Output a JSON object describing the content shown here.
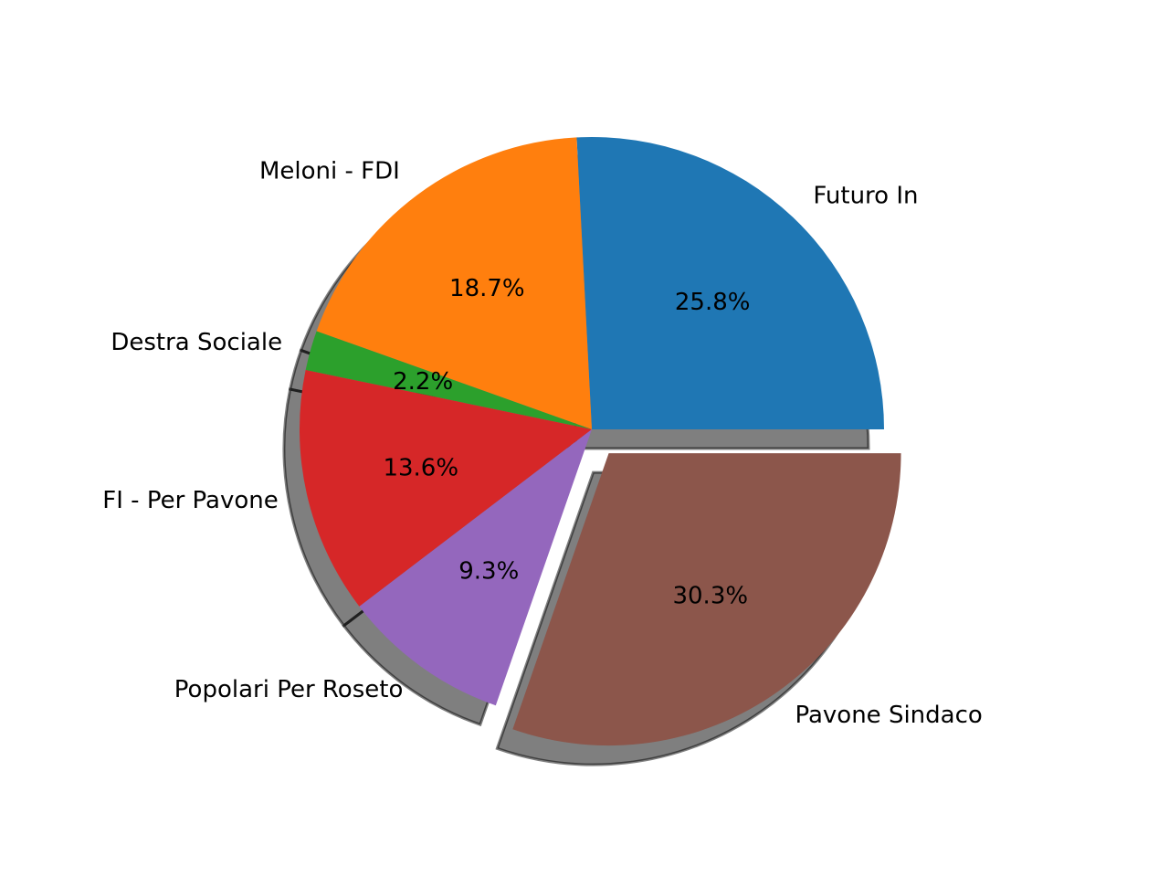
{
  "chart_data": {
    "type": "pie",
    "title": "",
    "start_angle_deg": 0,
    "direction": "counterclockwise",
    "shadow": true,
    "slices": [
      {
        "label": "Futuro In",
        "value": 25.8,
        "pct_label": "25.8%",
        "color": "#1f77b4",
        "explode": 0
      },
      {
        "label": "Meloni - FDI",
        "value": 18.7,
        "pct_label": "18.7%",
        "color": "#ff7f0e",
        "explode": 0
      },
      {
        "label": "Destra Sociale",
        "value": 2.2,
        "pct_label": "2.2%",
        "color": "#2ca02c",
        "explode": 0
      },
      {
        "label": "FI - Per Pavone",
        "value": 13.6,
        "pct_label": "13.6%",
        "color": "#d62728",
        "explode": 0
      },
      {
        "label": "Popolari Per Roseto",
        "value": 9.3,
        "pct_label": "9.3%",
        "color": "#9467bd",
        "explode": 0
      },
      {
        "label": "Pavone Sindaco",
        "value": 30.3,
        "pct_label": "30.3%",
        "color": "#8c564b",
        "explode": 0.1
      }
    ]
  }
}
